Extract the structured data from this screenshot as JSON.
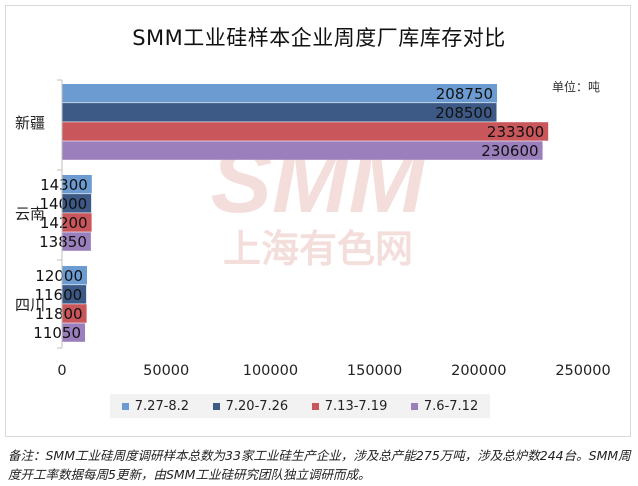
{
  "chart_data": {
    "type": "bar",
    "orientation": "horizontal",
    "title": "SMM工业硅样本企业周度厂库库存对比",
    "unit": "单位：吨",
    "categories": [
      "新疆",
      "云南",
      "四川"
    ],
    "series": [
      {
        "name": "7.27-8.2",
        "color": "#6c9bd2",
        "values": [
          208750,
          14300,
          12000
        ]
      },
      {
        "name": "7.20-7.26",
        "color": "#3d5a87",
        "values": [
          208500,
          14000,
          11600
        ]
      },
      {
        "name": "7.13-7.19",
        "color": "#c9565a",
        "values": [
          233300,
          14200,
          11800
        ]
      },
      {
        "name": "7.6-7.12",
        "color": "#9b7fbd",
        "values": [
          230600,
          13850,
          11050
        ]
      }
    ],
    "xlim": [
      0,
      250000
    ],
    "xticks": [
      0,
      50000,
      100000,
      150000,
      200000,
      250000
    ],
    "legend_position": "bottom",
    "grid": false
  },
  "watermark": {
    "line1": "SMM",
    "line2": "上海有色网"
  },
  "footnote": "备注：SMM工业硅周度调研样本总数为33家工业硅生产企业，涉及总产能275万吨，涉及总炉数244台。SMM周度开工率数据每周5更新，由SMM工业硅研究团队独立调研而成。"
}
